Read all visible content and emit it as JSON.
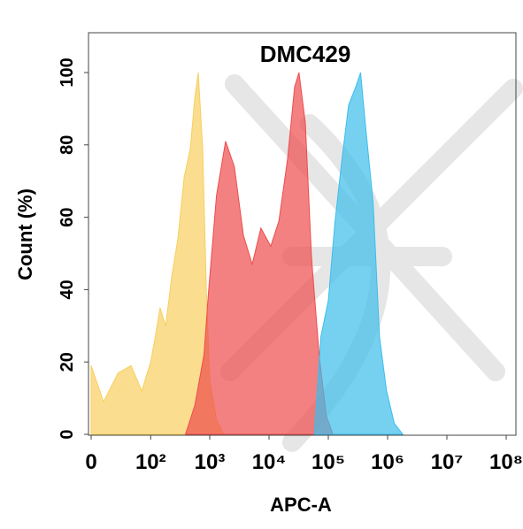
{
  "chart_data": {
    "type": "area",
    "title": "DMC429",
    "x_label": "APC-A",
    "y_label": "Count  (%)",
    "xscale": "biexponential",
    "xlim": [
      0,
      100000000
    ],
    "xticks": [
      0,
      {
        "value": 100,
        "label": "10²"
      },
      {
        "value": 1000,
        "label": "10³"
      },
      {
        "value": 10000,
        "label": "10⁴"
      },
      {
        "value": 100000,
        "label": "10⁵"
      },
      {
        "value": 1000000,
        "label": "10⁶"
      },
      {
        "value": 10000000,
        "label": "10⁷"
      },
      {
        "value": 100000000,
        "label": "10⁸"
      }
    ],
    "ylim": [
      0,
      111
    ],
    "yticks": [
      0,
      20,
      40,
      60,
      80,
      100
    ],
    "series": [
      {
        "color": "#f8cf5e",
        "x": [
          0,
          10,
          25,
          45,
          70,
          100,
          120,
          145,
          180,
          230,
          290,
          370,
          470,
          560,
          640,
          760,
          880,
          1000,
          1300,
          1700
        ],
        "values": [
          19,
          9,
          17,
          19,
          12,
          20,
          27,
          35,
          30,
          44,
          54,
          71,
          79,
          93,
          100,
          79,
          39,
          15,
          4,
          0
        ]
      },
      {
        "color": "#ee4c4c",
        "x": [
          390,
          560,
          800,
          950,
          1300,
          1850,
          2600,
          3700,
          5200,
          7300,
          10700,
          14700,
          20500,
          27000,
          32000,
          41000,
          52000,
          70000,
          93000,
          120000
        ],
        "values": [
          0,
          8,
          22,
          39,
          66,
          81,
          74,
          55,
          47,
          57,
          52,
          59,
          76,
          96,
          100,
          86,
          49,
          22,
          5,
          0
        ]
      },
      {
        "color": "#3cbdeb",
        "x": [
          58000,
          75000,
          100000,
          130000,
          170000,
          220000,
          290000,
          350000,
          420000,
          570000,
          730000,
          960000,
          1300000,
          1800000
        ],
        "values": [
          0,
          27,
          37,
          59,
          76,
          91,
          96,
          100,
          86,
          64,
          27,
          12,
          3,
          0
        ]
      }
    ]
  }
}
